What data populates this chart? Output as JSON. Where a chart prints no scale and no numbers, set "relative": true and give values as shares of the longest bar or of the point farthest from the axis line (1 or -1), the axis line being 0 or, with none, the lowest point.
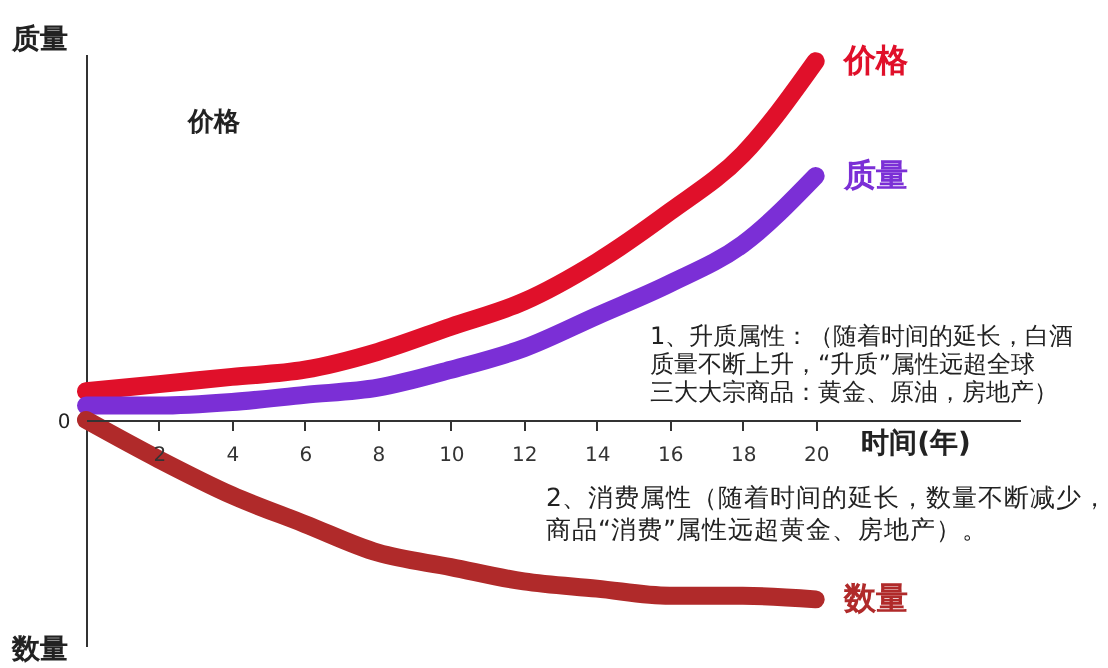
{
  "chart_data": {
    "type": "line",
    "relative": true,
    "x": [
      0,
      2,
      4,
      6,
      8,
      10,
      12,
      14,
      16,
      18,
      20
    ],
    "series": [
      {
        "name": "价格",
        "color": "#e0102a",
        "values": [
          0.08,
          0.1,
          0.12,
          0.14,
          0.19,
          0.26,
          0.33,
          0.44,
          0.58,
          0.74,
          1.0
        ]
      },
      {
        "name": "质量",
        "color": "#7b2fd6",
        "values": [
          0.04,
          0.04,
          0.05,
          0.07,
          0.09,
          0.14,
          0.2,
          0.29,
          0.38,
          0.49,
          0.68
        ]
      },
      {
        "name": "数量",
        "color": "#b02a2a",
        "values": [
          0,
          -0.11,
          -0.21,
          -0.29,
          -0.37,
          -0.41,
          -0.45,
          -0.47,
          -0.49,
          -0.49,
          -0.5
        ]
      }
    ],
    "xlim": [
      0,
      25.6
    ],
    "xticks": [
      2,
      4,
      6,
      8,
      10,
      12,
      14,
      16,
      18,
      20
    ],
    "xlabel": "时间(年)",
    "ylabel": "质量",
    "annotations": [
      "数量",
      "0",
      "价格",
      "1、升质属性：（随着时间的延长，白酒质量不断上升，“升质”属性远超全球三大大宗商品：黄金、原油，房地产）",
      "2、消费属性（随着时间的延长，数量不断减少，商品“消费”属性远超黄金、房地产）。"
    ],
    "grid": false,
    "line_style": "solid",
    "marker": "none"
  }
}
